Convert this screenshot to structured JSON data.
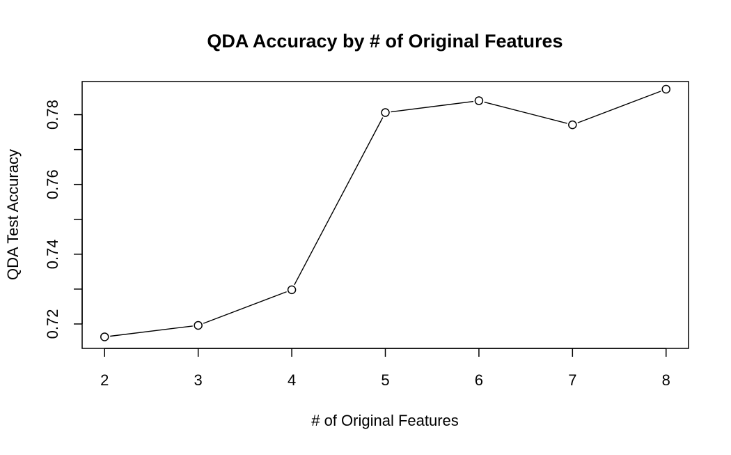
{
  "chart_data": {
    "type": "line",
    "title": "QDA Accuracy by # of Original Features",
    "xlabel": "# of Original Features",
    "ylabel": "QDA Test Accuracy",
    "x": [
      2,
      3,
      4,
      5,
      6,
      7,
      8
    ],
    "series": [
      {
        "values": [
          0.7163,
          0.7196,
          0.7298,
          0.7806,
          0.784,
          0.7771,
          0.7873
        ]
      }
    ],
    "xlim": [
      1.76,
      8.24
    ],
    "ylim": [
      0.713,
      0.7895
    ],
    "x_ticks": [
      "2",
      "3",
      "4",
      "5",
      "6",
      "7",
      "8"
    ],
    "y_ticks": [
      "0.72",
      "0.74",
      "0.76",
      "0.78"
    ],
    "y_ticks_minor": [
      0.73,
      0.75,
      0.77
    ],
    "grid": false,
    "marker": "open-circle",
    "line_color": "#000000"
  }
}
